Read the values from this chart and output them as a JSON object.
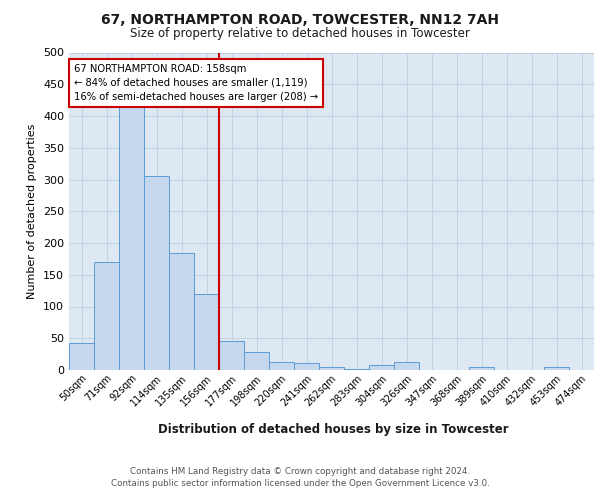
{
  "title1": "67, NORTHAMPTON ROAD, TOWCESTER, NN12 7AH",
  "title2": "Size of property relative to detached houses in Towcester",
  "xlabel": "Distribution of detached houses by size in Towcester",
  "ylabel": "Number of detached properties",
  "bin_labels": [
    "50sqm",
    "71sqm",
    "92sqm",
    "114sqm",
    "135sqm",
    "156sqm",
    "177sqm",
    "198sqm",
    "220sqm",
    "241sqm",
    "262sqm",
    "283sqm",
    "304sqm",
    "326sqm",
    "347sqm",
    "368sqm",
    "389sqm",
    "410sqm",
    "432sqm",
    "453sqm",
    "474sqm"
  ],
  "bar_values": [
    43,
    170,
    415,
    305,
    185,
    120,
    45,
    28,
    13,
    11,
    5,
    2,
    8,
    12,
    0,
    0,
    4,
    0,
    0,
    4,
    0
  ],
  "bar_color": "#c5d8ed",
  "bar_edge_color": "#5b9bd5",
  "vline_x": 5.5,
  "vline_color": "#cc0000",
  "annotation_line1": "67 NORTHAMPTON ROAD: 158sqm",
  "annotation_line2": "← 84% of detached houses are smaller (1,119)",
  "annotation_line3": "16% of semi-detached houses are larger (208) →",
  "annotation_box_edge": "#cc0000",
  "bg_color": "#dde8f3",
  "footer_line1": "Contains HM Land Registry data © Crown copyright and database right 2024.",
  "footer_line2": "Contains public sector information licensed under the Open Government Licence v3.0.",
  "ylim": [
    0,
    500
  ],
  "yticks": [
    0,
    50,
    100,
    150,
    200,
    250,
    300,
    350,
    400,
    450,
    500
  ]
}
